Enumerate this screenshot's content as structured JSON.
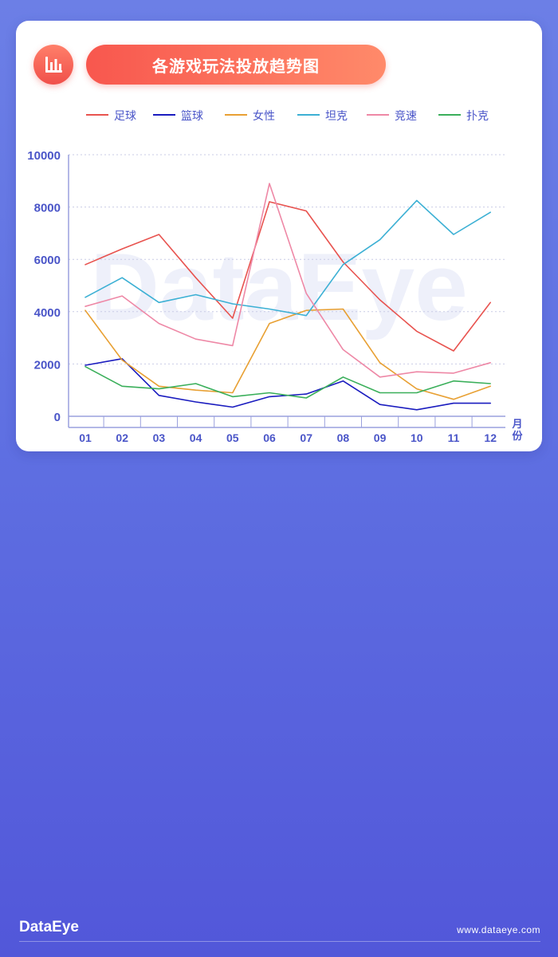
{
  "header": {
    "title": "各游戏玩法投放趋势图",
    "icon": "bar-chart-icon"
  },
  "footer": {
    "logo": "DataEye",
    "url": "www.dataeye.com"
  },
  "watermark": "DataEye",
  "chart_data": {
    "type": "line",
    "title": "各游戏玩法投放趋势图",
    "xlabel": "月份",
    "ylabel": "",
    "x": [
      "01",
      "02",
      "03",
      "04",
      "05",
      "06",
      "07",
      "08",
      "09",
      "10",
      "11",
      "12"
    ],
    "ylim": [
      0,
      10000
    ],
    "yticks": [
      0,
      2000,
      4000,
      6000,
      8000,
      10000
    ],
    "grid": true,
    "legend_position": "top",
    "series": [
      {
        "name": "足球",
        "color": "#e8534f",
        "values": [
          5800,
          6400,
          6950,
          5300,
          3750,
          8200,
          7850,
          5900,
          4450,
          3250,
          2500,
          4350
        ]
      },
      {
        "name": "篮球",
        "color": "#1a1cbf",
        "values": [
          1950,
          2200,
          800,
          550,
          350,
          750,
          850,
          1350,
          450,
          250,
          500,
          500
        ]
      },
      {
        "name": "女性",
        "color": "#e8a033",
        "values": [
          4050,
          2150,
          1150,
          1000,
          900,
          3550,
          4050,
          4100,
          2050,
          1050,
          650,
          1150
        ]
      },
      {
        "name": "坦克",
        "color": "#3cb0d4",
        "values": [
          4550,
          5300,
          4350,
          4650,
          4300,
          4100,
          3850,
          5800,
          6750,
          8250,
          6950,
          7800
        ]
      },
      {
        "name": "竞速",
        "color": "#ee88a6",
        "values": [
          4200,
          4600,
          3550,
          2950,
          2700,
          8900,
          4700,
          2550,
          1500,
          1700,
          1650,
          2050
        ]
      },
      {
        "name": "扑克",
        "color": "#3aaf5a",
        "values": [
          1900,
          1150,
          1050,
          1250,
          750,
          900,
          700,
          1500,
          900,
          900,
          1350,
          1250
        ]
      }
    ]
  }
}
